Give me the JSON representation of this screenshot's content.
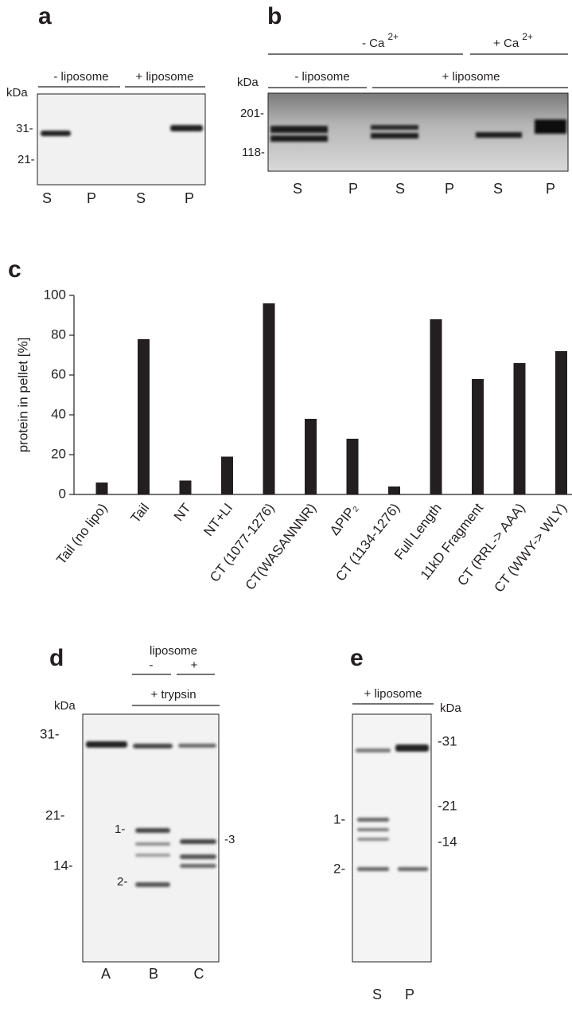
{
  "panel_a": {
    "letter": "a",
    "groups": [
      "- liposome",
      "+ liposome"
    ],
    "unit": "kDa",
    "markers": [
      "31-",
      "21-"
    ],
    "lanes": [
      "S",
      "P",
      "S",
      "P"
    ]
  },
  "panel_b": {
    "letter": "b",
    "conditions": [
      {
        "label": "- Ca",
        "sup": "2+"
      },
      {
        "label": "+ Ca",
        "sup": "2+"
      }
    ],
    "groups": [
      "- liposome",
      "+ liposome"
    ],
    "unit": "kDa",
    "markers": [
      "201-",
      "118-"
    ],
    "lanes": [
      "S",
      "P",
      "S",
      "P",
      "S",
      "P"
    ]
  },
  "panel_c": {
    "letter": "c"
  },
  "chart_data": {
    "type": "bar",
    "ylabel": "protein in pellet [%]",
    "categories": [
      "Tail (no lipo)",
      "Tail",
      "NT",
      "NT+LI",
      "CT (1077-1276)",
      "CT(WASANNNR)",
      "ΔPIP₂",
      "CT (1134-1276)",
      "Full Length",
      "11kD Fragment",
      "CT (RRL-> AAA)",
      "CT (WWY-> WLY)"
    ],
    "values": [
      6,
      78,
      7,
      19,
      96,
      38,
      28,
      4,
      88,
      58,
      66,
      72
    ],
    "color": "#231f20",
    "ylim": [
      0,
      100
    ],
    "yticks": [
      0,
      20,
      40,
      60,
      80,
      100
    ]
  },
  "panel_d": {
    "letter": "d",
    "condition": "liposome",
    "signs": [
      "-",
      "+"
    ],
    "treatment": "+ trypsin",
    "unit": "kDa",
    "markers": [
      "31-",
      "21-",
      "14-"
    ],
    "bands": [
      "1-",
      "2-",
      "-3"
    ],
    "lanes": [
      "A",
      "B",
      "C"
    ]
  },
  "panel_e": {
    "letter": "e",
    "condition": "+ liposome",
    "unit": "kDa",
    "markers": [
      "-31",
      "-21",
      "-14"
    ],
    "bands": [
      "1-",
      "2-"
    ],
    "lanes": [
      "S",
      "P"
    ]
  }
}
